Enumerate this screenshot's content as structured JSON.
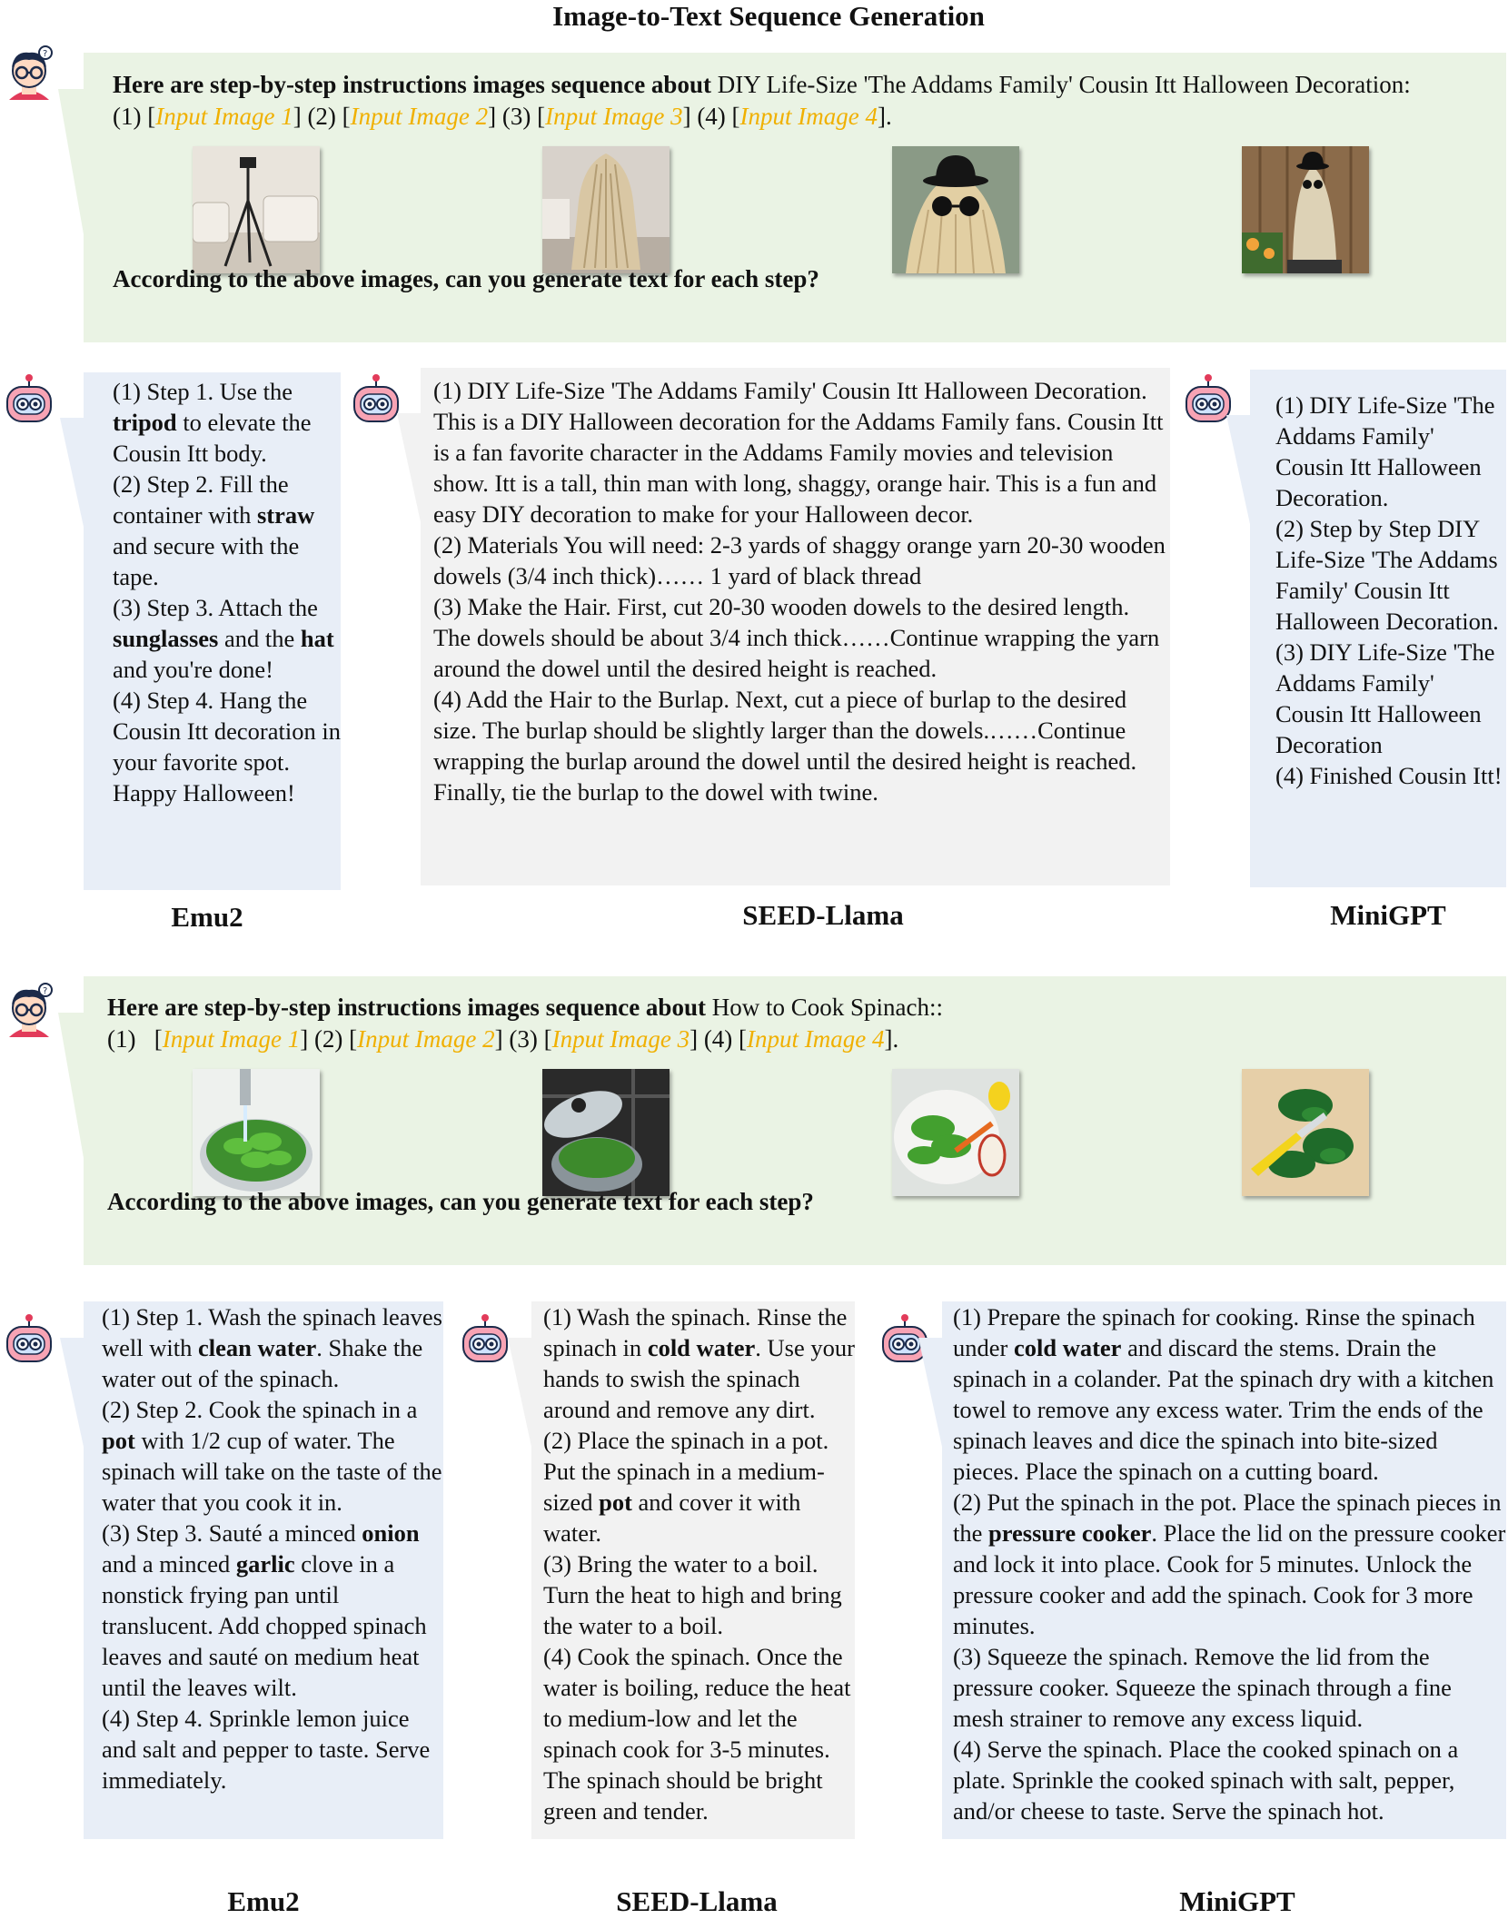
{
  "title": "Image-to-Text Sequence Generation",
  "placeholder_texts": [
    "Input Image 1",
    "Input Image 2",
    "Input Image 3",
    "Input Image 4"
  ],
  "example1": {
    "prompt_bold": "Here are step-by-step instructions images sequence about",
    "prompt_topic": "DIY Life-Size 'The Addams Family' Cousin Itt Halloween Decoration:",
    "question": "According to the above images, can you generate text for each step?",
    "models": [
      "Emu2",
      "SEED-Llama",
      "MiniGPT"
    ]
  },
  "example2": {
    "prompt_bold": "Here are step-by-step instructions images sequence about",
    "prompt_topic": "How to Cook Spinach::",
    "question": "According to the above images, can you generate text for each step?",
    "models": [
      "Emu2",
      "SEED-Llama",
      "MiniGPT"
    ]
  },
  "responses": {
    "e1_emu2": [
      {
        "t": "(1) Step 1. Use the "
      },
      {
        "t": "tripod",
        "b": true
      },
      {
        "t": " to elevate the Cousin Itt body."
      },
      {
        "br": true
      },
      {
        "t": "(2) Step 2. Fill the container with "
      },
      {
        "t": "straw",
        "b": true
      },
      {
        "t": " and secure with the tape."
      },
      {
        "br": true
      },
      {
        "t": "(3) Step 3. Attach the "
      },
      {
        "t": "sunglasses",
        "b": true
      },
      {
        "t": " and the "
      },
      {
        "t": "hat",
        "b": true
      },
      {
        "t": " and you're done!"
      },
      {
        "br": true
      },
      {
        "t": "(4) Step 4. Hang the Cousin Itt decoration in your favorite spot. Happy Halloween!"
      }
    ],
    "e1_seed": [
      {
        "t": "(1) DIY Life-Size 'The Addams Family' Cousin Itt Halloween Decoration. This is a DIY Halloween decoration for the Addams Family fans. Cousin Itt is a fan favorite character in the Addams Family movies and television show. Itt is a tall, thin man with long, shaggy, orange hair. This is a fun and easy DIY decoration to make for your Halloween decor."
      },
      {
        "br": true
      },
      {
        "t": "(2) Materials You will need: 2-3 yards of shaggy orange yarn 20-30 wooden dowels (3/4 inch thick)…… 1 yard of black thread"
      },
      {
        "br": true
      },
      {
        "t": "(3) Make the Hair. First, cut 20-30 wooden dowels to the desired length. The dowels should be about 3/4 inch thick……Continue wrapping the yarn around the dowel until the desired height is reached."
      },
      {
        "br": true
      },
      {
        "t": "(4) Add the Hair to the Burlap. Next, cut a piece of burlap to the desired size. The burlap should be slightly larger than the dowels.……Continue wrapping the burlap around the dowel until the desired height is reached. Finally, tie the burlap to the dowel with twine."
      }
    ],
    "e1_minigpt": [
      {
        "t": "(1) DIY Life-Size 'The Addams Family' Cousin Itt Halloween Decoration."
      },
      {
        "br": true
      },
      {
        "t": "(2) Step by Step DIY Life-Size 'The Addams Family' Cousin Itt Halloween Decoration."
      },
      {
        "br": true
      },
      {
        "t": "(3) DIY Life-Size 'The Addams Family' Cousin Itt Halloween Decoration"
      },
      {
        "br": true
      },
      {
        "t": "(4) Finished Cousin Itt!"
      }
    ],
    "e2_emu2": [
      {
        "t": "(1) Step 1. Wash the spinach leaves well with "
      },
      {
        "t": "clean water",
        "b": true
      },
      {
        "t": ". Shake the water out of the spinach."
      },
      {
        "br": true
      },
      {
        "t": "(2) Step 2. Cook the spinach in a "
      },
      {
        "t": "pot",
        "b": true
      },
      {
        "t": " with 1/2 cup of water. The spinach will take on the taste of the water that you cook it in."
      },
      {
        "br": true
      },
      {
        "t": "(3) Step 3. Sauté a minced "
      },
      {
        "t": "onion",
        "b": true
      },
      {
        "t": " and a minced "
      },
      {
        "t": "garlic",
        "b": true
      },
      {
        "t": " clove in a nonstick frying pan until translucent. Add chopped spinach leaves and sauté on medium heat until the leaves wilt."
      },
      {
        "br": true
      },
      {
        "t": "(4) Step 4. Sprinkle lemon juice and salt and pepper to taste. Serve immediately."
      }
    ],
    "e2_seed": [
      {
        "t": "(1) Wash the spinach. Rinse the spinach in "
      },
      {
        "t": "cold water",
        "b": true
      },
      {
        "t": ". Use your hands to swish the spinach around and remove any dirt."
      },
      {
        "br": true
      },
      {
        "t": "(2) Place the spinach in a pot. Put the spinach in a medium-sized "
      },
      {
        "t": "pot",
        "b": true
      },
      {
        "t": " and cover it with water."
      },
      {
        "br": true
      },
      {
        "t": "(3) Bring the water to a boil. Turn the heat to high and bring the water to a boil."
      },
      {
        "br": true
      },
      {
        "t": "(4) Cook the spinach. Once the water is boiling, reduce the heat to medium-low and let the spinach cook for 3-5 minutes. The spinach should be bright green and tender."
      }
    ],
    "e2_minigpt": [
      {
        "t": "(1) Prepare the spinach for cooking. Rinse the spinach under "
      },
      {
        "t": "cold water",
        "b": true
      },
      {
        "t": " and discard the stems. Drain the spinach in a colander. Pat the spinach dry with a kitchen towel to remove any excess water. Trim the ends of the spinach leaves and dice the spinach into bite-sized pieces. Place the spinach on a cutting board."
      },
      {
        "br": true
      },
      {
        "t": "(2) Put the spinach in the pot. Place the spinach pieces in the "
      },
      {
        "t": "pressure cooker",
        "b": true
      },
      {
        "t": ". Place the lid on the pressure cooker and lock it into place. Cook for 5 minutes. Unlock the pressure cooker and add the spinach. Cook for 3 more minutes."
      },
      {
        "br": true
      },
      {
        "t": "(3) Squeeze the spinach. Remove the lid from the pressure cooker. Squeeze the spinach through a fine mesh strainer to remove any excess liquid."
      },
      {
        "br": true
      },
      {
        "t": "(4) Serve the spinach. Place the cooked spinach on a plate. Sprinkle the cooked spinach with salt, pepper, and/or cheese to taste. Serve the spinach hot."
      }
    ]
  },
  "colors": {
    "prompt_bg": "#eaf3e4",
    "response_blue": "#e8eef7",
    "response_gray": "#f2f2f2",
    "placeholder": "#f0b000"
  }
}
